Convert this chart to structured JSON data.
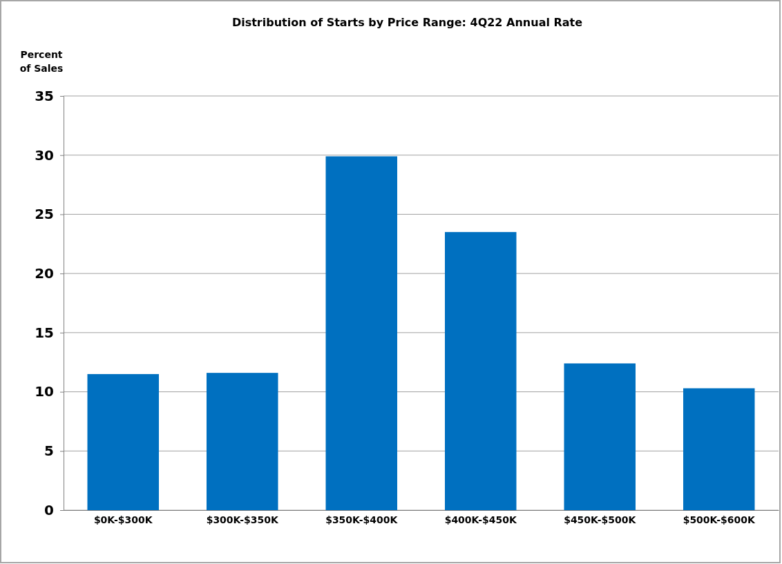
{
  "chart_data": {
    "type": "bar",
    "title": "Distribution of Starts by Price Range: 4Q22 Annual Rate",
    "ylabel": "Percent\nof Sales",
    "categories": [
      "$0K-$300K",
      "$300K-$350K",
      "$350K-$400K",
      "$400K-$450K",
      "$450K-$500K",
      "$500K-$600K"
    ],
    "values": [
      11.5,
      11.6,
      29.9,
      23.5,
      12.4,
      10.3
    ],
    "color": "#0070c0",
    "ylim": [
      0,
      35
    ],
    "yticks": [
      0,
      5,
      10,
      15,
      20,
      25,
      30,
      35
    ],
    "grid": "y"
  }
}
